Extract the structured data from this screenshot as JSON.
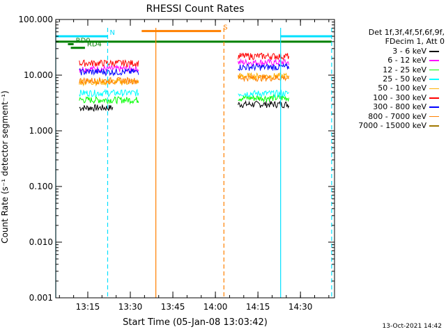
{
  "chart_data": {
    "type": "line",
    "title": "RHESSI Count Rates",
    "xlabel": "Start Time (05-Jan-08 13:03:42)",
    "ylabel": "Count Rate (s⁻¹ detector segment⁻¹)",
    "yscale": "log",
    "ylim": [
      0.001,
      100
    ],
    "xlim": [
      "13:03:42",
      "14:42"
    ],
    "xticks": [
      "13:15",
      "13:30",
      "13:45",
      "14:00",
      "14:15",
      "14:30"
    ],
    "yticks": [
      "0.001",
      "0.010",
      "0.100",
      "1.000",
      "10.000",
      "100.000"
    ],
    "legend_title_lines": [
      "Det 1f,3f,4f,5f,6f,9f,",
      "FDecim 1, Att 0"
    ],
    "legend_position": "right",
    "series": [
      {
        "name": "3 - 6 keV",
        "color": "#000000",
        "segments": [
          {
            "start": "13:12",
            "end": "13:24",
            "level": 2.6
          },
          {
            "start": "14:08",
            "end": "14:26",
            "level": 3.0
          }
        ]
      },
      {
        "name": "6 - 12 keV",
        "color": "#ff00ff",
        "segments": [
          {
            "start": "13:12",
            "end": "13:33",
            "level": 13.0
          },
          {
            "start": "14:08",
            "end": "14:26",
            "level": 17.0
          }
        ]
      },
      {
        "name": "12 - 25 keV",
        "color": "#00ff00",
        "segments": [
          {
            "start": "13:12",
            "end": "13:33",
            "level": 3.6
          },
          {
            "start": "14:08",
            "end": "14:26",
            "level": 3.9
          }
        ]
      },
      {
        "name": "25 - 50 keV",
        "color": "#00ffff",
        "segments": [
          {
            "start": "13:12",
            "end": "13:33",
            "level": 4.8
          },
          {
            "start": "14:08",
            "end": "14:26",
            "level": 4.7
          }
        ]
      },
      {
        "name": "50 - 100 keV",
        "color": "#ffb000",
        "segments": [
          {
            "start": "13:12",
            "end": "13:33",
            "level": 7.6
          },
          {
            "start": "14:08",
            "end": "14:26",
            "level": 9.6
          }
        ]
      },
      {
        "name": "100 - 300 keV",
        "color": "#ff0000",
        "segments": [
          {
            "start": "13:12",
            "end": "13:33",
            "level": 16.5
          },
          {
            "start": "14:08",
            "end": "14:26",
            "level": 22.0
          }
        ]
      },
      {
        "name": "300 - 800 keV",
        "color": "#0000ff",
        "segments": [
          {
            "start": "13:12",
            "end": "13:33",
            "level": 11.5
          },
          {
            "start": "14:08",
            "end": "14:26",
            "level": 14.0
          }
        ]
      },
      {
        "name": "800 - 7000 keV",
        "color": "#ff8000",
        "segments": [
          {
            "start": "13:12",
            "end": "13:33",
            "level": 8.0
          },
          {
            "start": "14:08",
            "end": "14:26",
            "level": 9.0
          }
        ]
      },
      {
        "name": "7000 - 15000 keV",
        "color": "#a07800",
        "segments": []
      }
    ],
    "flag_bars": [
      {
        "label": "N",
        "color": "#00e0ff",
        "start": "13:03:42",
        "end": "13:22",
        "level": 50
      },
      {
        "label": "",
        "color": "#00e0ff",
        "start": "14:23",
        "end": "14:41",
        "level": 50
      },
      {
        "label": "S",
        "color": "#ff8000",
        "start": "13:34",
        "end": "14:02",
        "level": 62
      },
      {
        "label": "",
        "color": "#008000",
        "start": "13:03:42",
        "end": "14:41",
        "level": 40
      },
      {
        "label": "RD0",
        "color": "#008000",
        "start": "13:08",
        "end": "13:10",
        "level": 36
      },
      {
        "label": "RD4",
        "color": "#008000",
        "start": "13:09",
        "end": "13:14",
        "level": 31
      }
    ],
    "vlines": [
      {
        "time": "13:03:42",
        "color": "#00e0ff",
        "style": "solid"
      },
      {
        "time": "13:22",
        "color": "#00e0ff",
        "style": "dashed"
      },
      {
        "time": "13:39",
        "color": "#ff8000",
        "style": "solid"
      },
      {
        "time": "14:03",
        "color": "#ff8000",
        "style": "dashed"
      },
      {
        "time": "14:23",
        "color": "#00e0ff",
        "style": "solid"
      },
      {
        "time": "14:41",
        "color": "#00e0ff",
        "style": "dashed"
      }
    ],
    "grid": false
  },
  "stamp": "13-Oct-2021 14:42"
}
